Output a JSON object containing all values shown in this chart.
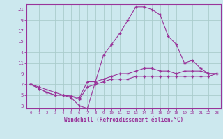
{
  "xlabel": "Windchill (Refroidissement éolien,°C)",
  "background_color": "#cce8ee",
  "line_color": "#993399",
  "grid_color": "#aacccc",
  "hours": [
    0,
    1,
    2,
    3,
    4,
    5,
    6,
    7,
    8,
    9,
    10,
    11,
    12,
    13,
    14,
    15,
    16,
    17,
    18,
    19,
    20,
    21,
    22,
    23
  ],
  "curve1": [
    7,
    6.5,
    6,
    5.5,
    5,
    4.5,
    3,
    2.5,
    7.5,
    12.5,
    14.5,
    16.5,
    19,
    21.5,
    21.5,
    21,
    20,
    16,
    14.5,
    11,
    11.5,
    10,
    9,
    9
  ],
  "curve2": [
    7,
    6.2,
    5.5,
    5,
    5,
    4.8,
    4.5,
    7.5,
    7.5,
    8,
    8.5,
    9,
    9,
    9.5,
    10,
    10,
    9.5,
    9.5,
    9,
    9.5,
    9.5,
    9.5,
    9,
    9
  ],
  "curve3": [
    7,
    6.2,
    5.5,
    5,
    5,
    4.8,
    4.2,
    6.5,
    7,
    7.5,
    8,
    8,
    8,
    8.5,
    8.5,
    8.5,
    8.5,
    8.5,
    8.5,
    8.5,
    8.5,
    8.5,
    8.5,
    9
  ],
  "xlim": [
    0,
    23
  ],
  "ylim": [
    3,
    21
  ],
  "yticks": [
    3,
    5,
    7,
    9,
    11,
    13,
    15,
    17,
    19,
    21
  ],
  "xticks": [
    0,
    1,
    2,
    3,
    4,
    5,
    6,
    7,
    8,
    9,
    10,
    11,
    12,
    13,
    14,
    15,
    16,
    17,
    18,
    19,
    20,
    21,
    22,
    23
  ]
}
